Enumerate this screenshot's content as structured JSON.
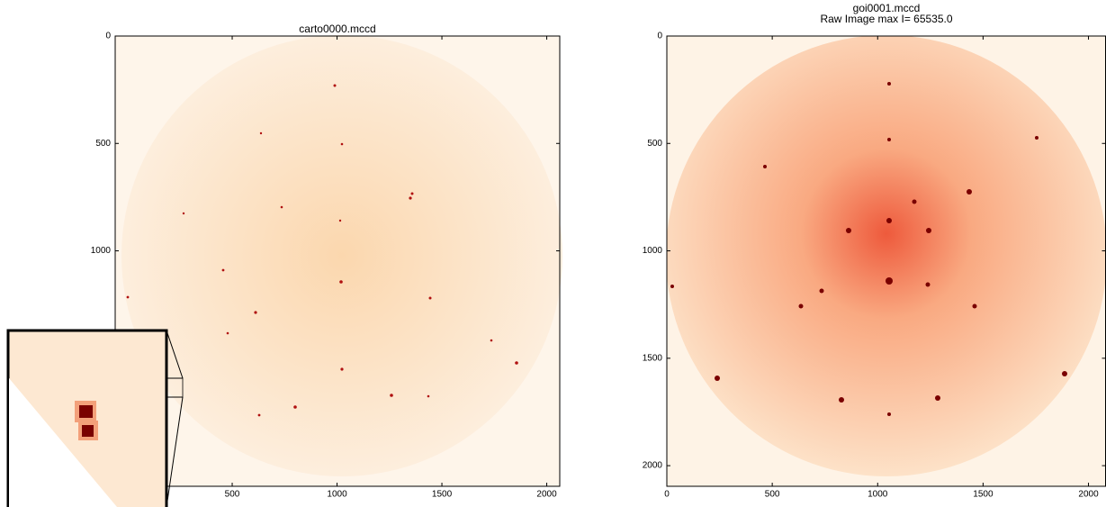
{
  "chart_data": [
    {
      "type": "image",
      "title": "carto0000.mccd",
      "xlim": [
        -58,
        2062
      ],
      "ylim": [
        0,
        2096
      ],
      "xticks": [
        500,
        1000,
        1500,
        2000
      ],
      "yticks": [
        0,
        500,
        1000
      ]
    },
    {
      "type": "image",
      "title": "goi0001.mccd",
      "subtitle": "Raw Image  max I= 65535.0",
      "xlim": [
        0,
        2081
      ],
      "ylim": [
        0,
        2096
      ],
      "xticks": [
        0,
        500,
        1000,
        1500,
        2000
      ],
      "yticks": [
        0,
        500,
        1000,
        1500,
        2000
      ]
    }
  ]
}
